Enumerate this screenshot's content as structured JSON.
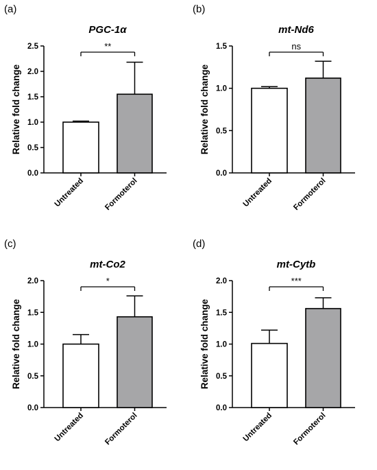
{
  "chart_data": [
    {
      "type": "bar",
      "panel_label": "(a)",
      "title": "PGC-1α",
      "ylabel": "Relative fold change",
      "categories": [
        "Untreated",
        "Formoterol"
      ],
      "values": [
        1.0,
        1.55
      ],
      "error": [
        0.02,
        0.63
      ],
      "bar_colors": [
        "#ffffff",
        "#a6a6a8"
      ],
      "ylim": [
        0,
        2.5
      ],
      "yticks": [
        "0.0",
        "0.5",
        "1.0",
        "1.5",
        "2.0",
        "2.5"
      ],
      "significance": "**"
    },
    {
      "type": "bar",
      "panel_label": "(b)",
      "title": "mt-Nd6",
      "ylabel": "Relative fold change",
      "categories": [
        "Untreated",
        "Formoterol"
      ],
      "values": [
        1.0,
        1.12
      ],
      "error": [
        0.02,
        0.2
      ],
      "bar_colors": [
        "#ffffff",
        "#a6a6a8"
      ],
      "ylim": [
        0,
        1.5
      ],
      "yticks": [
        "0.0",
        "0.5",
        "1.0",
        "1.5"
      ],
      "significance": "ns"
    },
    {
      "type": "bar",
      "panel_label": "(c)",
      "title": "mt-Co2",
      "ylabel": "Relative fold change",
      "categories": [
        "Untreated",
        "Formoterol"
      ],
      "values": [
        1.0,
        1.43
      ],
      "error": [
        0.15,
        0.33
      ],
      "bar_colors": [
        "#ffffff",
        "#a6a6a8"
      ],
      "ylim": [
        0,
        2.0
      ],
      "yticks": [
        "0.0",
        "0.5",
        "1.0",
        "1.5",
        "2.0"
      ],
      "significance": "*"
    },
    {
      "type": "bar",
      "panel_label": "(d)",
      "title": "mt-Cytb",
      "ylabel": "Relative fold change",
      "categories": [
        "Untreated",
        "Formoterol"
      ],
      "values": [
        1.01,
        1.56
      ],
      "error": [
        0.21,
        0.17
      ],
      "bar_colors": [
        "#ffffff",
        "#a6a6a8"
      ],
      "ylim": [
        0,
        2.0
      ],
      "yticks": [
        "0.0",
        "0.5",
        "1.0",
        "1.5",
        "2.0"
      ],
      "significance": "***"
    }
  ]
}
